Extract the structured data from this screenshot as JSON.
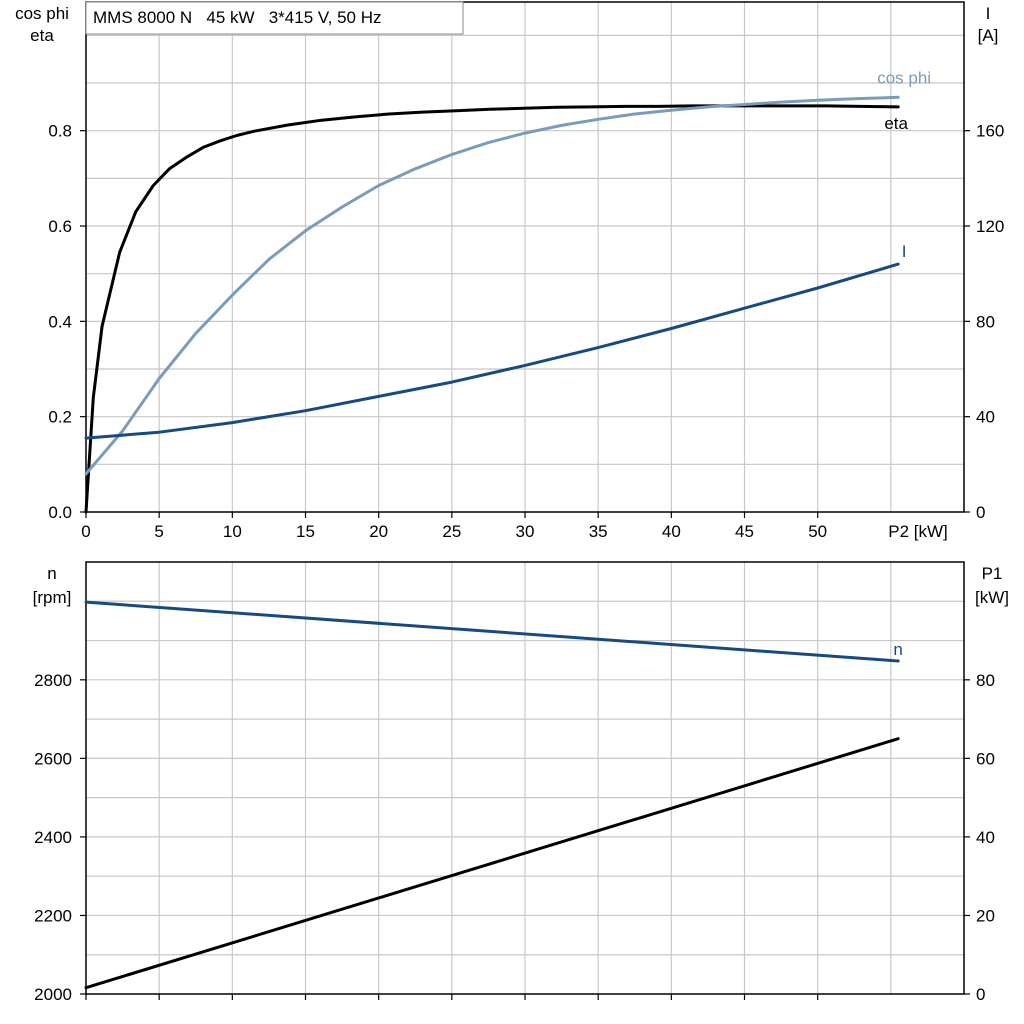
{
  "colors": {
    "eta": "#000000",
    "cos_phi": "#7a9cbc",
    "current": "#164a80",
    "speed": "#164a80",
    "p1": "#000000",
    "grid": "#c8c8c8"
  },
  "chart_data": [
    {
      "type": "line",
      "title": "MMS 8000 N   45 kW   3*415 V, 50 Hz",
      "xlabel": "P2 [kW]",
      "xlim": [
        0,
        60
      ],
      "x_ticks": [
        0,
        5,
        10,
        15,
        20,
        25,
        30,
        35,
        40,
        45,
        50
      ],
      "x_tick_labels": [
        "0",
        "5",
        "10",
        "15",
        "20",
        "25",
        "30",
        "35",
        "40",
        "45",
        "50"
      ],
      "grid": true,
      "left_axis": {
        "label_lines": [
          "cos phi",
          "eta"
        ],
        "ylim": [
          0,
          1.07
        ],
        "ticks": [
          0,
          0.2,
          0.4,
          0.6,
          0.8
        ],
        "tick_labels": [
          "0.0",
          "0.2",
          "0.4",
          "0.6",
          "0.8"
        ]
      },
      "right_axis": {
        "label_lines": [
          "I",
          "[A]"
        ],
        "ylim": [
          0,
          214
        ],
        "ticks": [
          0,
          40,
          80,
          120,
          160
        ],
        "tick_labels": [
          "0",
          "40",
          "80",
          "120",
          "160"
        ]
      },
      "series": [
        {
          "name": "eta",
          "axis": "left",
          "color": "#000000",
          "x": [
            0,
            0.5,
            1.1,
            2.3,
            3.4,
            4.6,
            5.7,
            6.9,
            8,
            9.2,
            10.3,
            11.5,
            13.8,
            16.1,
            18.4,
            20.7,
            23,
            25.3,
            27.6,
            29.9,
            32.2,
            34.5,
            36.8,
            39.1,
            41.4,
            43.7,
            46,
            48.3,
            50.6,
            52.9,
            55.5
          ],
          "y": [
            0,
            0.24,
            0.39,
            0.545,
            0.63,
            0.685,
            0.72,
            0.745,
            0.765,
            0.779,
            0.79,
            0.799,
            0.812,
            0.822,
            0.829,
            0.835,
            0.839,
            0.842,
            0.845,
            0.847,
            0.849,
            0.85,
            0.851,
            0.851,
            0.852,
            0.852,
            0.852,
            0.852,
            0.852,
            0.851,
            0.85
          ]
        },
        {
          "name": "cos phi",
          "axis": "left",
          "color": "#7a9cbc",
          "x": [
            0,
            2.5,
            5,
            7.5,
            10,
            12.5,
            15,
            17.5,
            20,
            22.5,
            25,
            27.5,
            30,
            32.5,
            35,
            37.5,
            40,
            42.5,
            45,
            47.5,
            50,
            52.5,
            55.5
          ],
          "y": [
            0.08,
            0.17,
            0.28,
            0.375,
            0.455,
            0.53,
            0.59,
            0.64,
            0.685,
            0.72,
            0.75,
            0.775,
            0.795,
            0.811,
            0.824,
            0.835,
            0.843,
            0.85,
            0.855,
            0.86,
            0.864,
            0.867,
            0.87
          ]
        },
        {
          "name": "I",
          "axis": "right",
          "color": "#164a80",
          "x": [
            0,
            5,
            10,
            15,
            20,
            25,
            30,
            35,
            40,
            45,
            50,
            55.5
          ],
          "y": [
            31,
            33.5,
            37.5,
            42.5,
            48.5,
            54.5,
            61.5,
            69,
            77,
            85.5,
            94,
            104
          ]
        }
      ],
      "series_labels": [
        {
          "name": "eta",
          "text": "eta"
        },
        {
          "name": "cos phi",
          "text": "cos phi"
        },
        {
          "name": "I",
          "text": "I"
        }
      ]
    },
    {
      "type": "line",
      "xlim": [
        0,
        60
      ],
      "x_ticks": [
        0,
        5,
        10,
        15,
        20,
        25,
        30,
        35,
        40,
        45,
        50
      ],
      "grid": true,
      "left_axis": {
        "label_lines": [
          "n",
          "[rpm]"
        ],
        "ylim": [
          2000,
          3100
        ],
        "ticks": [
          2000,
          2200,
          2400,
          2600,
          2800
        ],
        "tick_labels": [
          "2000",
          "2200",
          "2400",
          "2600",
          "2800"
        ]
      },
      "right_axis": {
        "label_lines": [
          "P1",
          "[kW]"
        ],
        "ylim": [
          0,
          110
        ],
        "ticks": [
          0,
          20,
          40,
          60,
          80
        ],
        "tick_labels": [
          "0",
          "20",
          "40",
          "60",
          "80"
        ]
      },
      "series": [
        {
          "name": "n",
          "axis": "left",
          "color": "#164a80",
          "x": [
            0,
            55.5
          ],
          "y": [
            2998,
            2848
          ]
        },
        {
          "name": "P1",
          "axis": "right",
          "color": "#000000",
          "x": [
            0,
            55.5
          ],
          "y": [
            1.6,
            65
          ]
        }
      ],
      "series_labels": [
        {
          "name": "n",
          "text": "n"
        }
      ]
    }
  ]
}
